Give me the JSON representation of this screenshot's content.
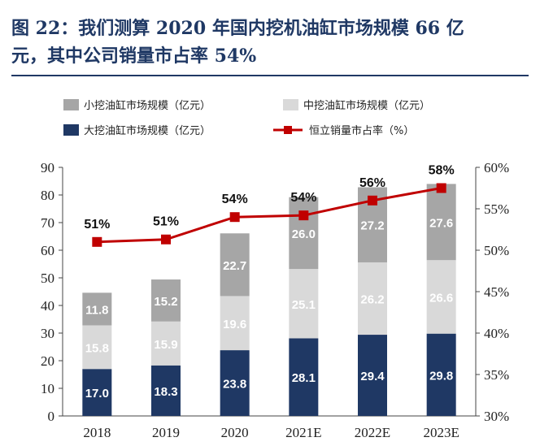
{
  "title": {
    "line1": "图 22：我们测算 2020 年国内挖机油缸市场规模 66 亿",
    "line2": "元，其中公司销量市占率 54%"
  },
  "chart_data": {
    "type": "bar",
    "stacked": true,
    "categories": [
      "2018",
      "2019",
      "2020",
      "2021E",
      "2022E",
      "2023E"
    ],
    "series": [
      {
        "name": "大挖油缸市场规模（亿元）",
        "color": "#1f3864",
        "values": [
          17.0,
          18.3,
          23.8,
          28.1,
          29.4,
          29.8
        ],
        "labels": [
          "17.0",
          "18.3",
          "23.8",
          "28.1",
          "29.4",
          "29.8"
        ]
      },
      {
        "name": "中挖油缸市场规模（亿元）",
        "color": "#d9d9d9",
        "values": [
          15.8,
          15.9,
          19.6,
          25.1,
          26.2,
          26.6
        ],
        "labels": [
          "15.8",
          "15.9",
          "19.6",
          "25.1",
          "26.2",
          "26.6"
        ]
      },
      {
        "name": "小挖油缸市场规模（亿元）",
        "color": "#a6a6a6",
        "values": [
          11.8,
          15.2,
          22.7,
          26.0,
          27.2,
          27.6
        ],
        "labels": [
          "11.8",
          "15.2",
          "22.7",
          "26.0",
          "27.2",
          "27.6"
        ]
      }
    ],
    "line_series": {
      "name": "恒立销量市占率（%）",
      "color": "#c00000",
      "values": [
        51,
        51.3,
        54,
        54.2,
        56,
        57.5
      ],
      "labels": [
        "51%",
        "51%",
        "54%",
        "54%",
        "56%",
        "58%"
      ]
    },
    "y_left": {
      "min": 0,
      "max": 90,
      "ticks": [
        "0",
        "10",
        "20",
        "30",
        "40",
        "50",
        "60",
        "70",
        "80",
        "90"
      ]
    },
    "y_right": {
      "min": 30,
      "max": 60,
      "ticks": [
        "30%",
        "35%",
        "40%",
        "45%",
        "50%",
        "55%",
        "60%"
      ]
    },
    "legend": {
      "row1": [
        "小挖油缸市场规模（亿元）",
        "中挖油缸市场规模（亿元）"
      ],
      "row2": [
        "大挖油缸市场规模（亿元）",
        "恒立销量市占率（%）"
      ]
    },
    "grid": false
  }
}
